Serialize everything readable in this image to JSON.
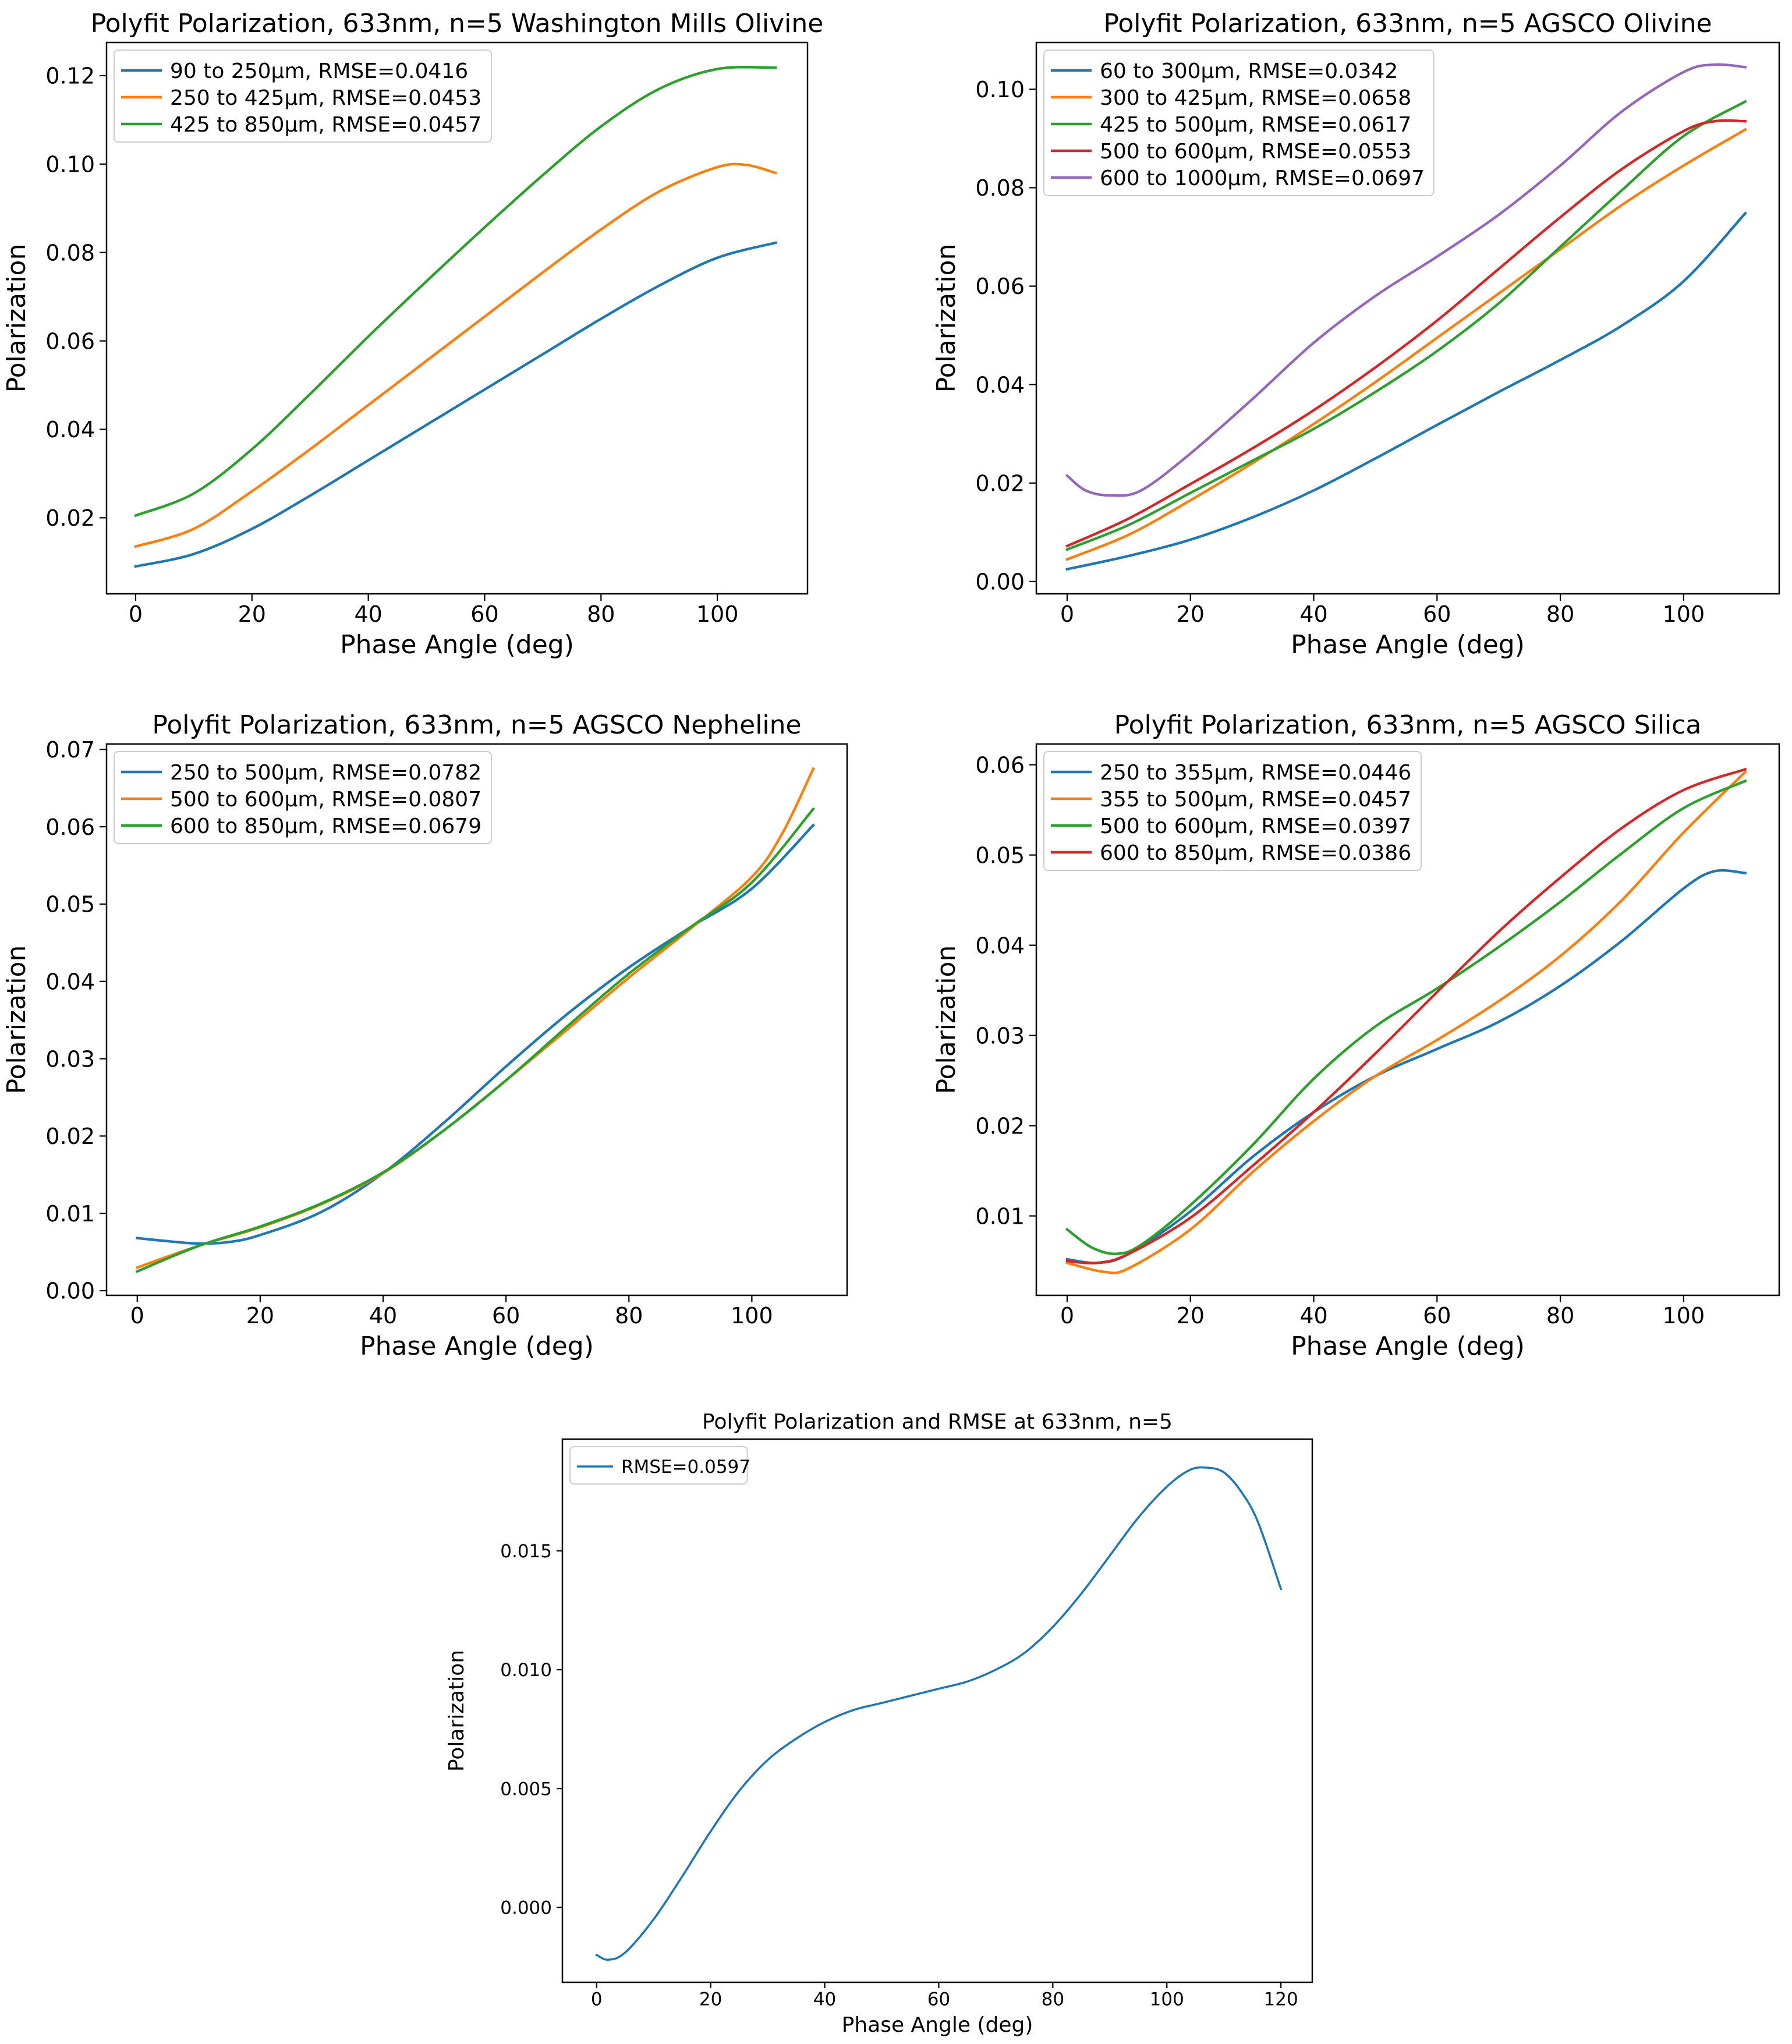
{
  "chart_data": [
    {
      "type": "line",
      "title": "Polyfit Polarization, 633nm, n=5 Washington Mills Olivine",
      "xlabel": "Phase Angle (deg)",
      "ylabel": "Polarization",
      "xlim": [
        -5,
        115.5
      ],
      "ylim": [
        0.0028,
        0.1275
      ],
      "xticks": [
        0,
        20,
        40,
        60,
        80,
        100
      ],
      "xtick_labels": [
        "0",
        "20",
        "40",
        "60",
        "80",
        "100"
      ],
      "yticks": [
        0.02,
        0.04,
        0.06,
        0.08,
        0.1,
        0.12
      ],
      "ytick_labels": [
        "0.02",
        "0.04",
        "0.06",
        "0.08",
        "0.10",
        "0.12"
      ],
      "legend": "upper-left",
      "series": [
        {
          "name": "90 to 250µm, RMSE=0.0416",
          "color": "#1f77b4",
          "x": [
            0,
            10,
            20,
            30,
            40,
            50,
            60,
            70,
            80,
            90,
            100,
            110
          ],
          "y": [
            0.009,
            0.0118,
            0.0175,
            0.025,
            0.033,
            0.041,
            0.049,
            0.057,
            0.065,
            0.0725,
            0.0788,
            0.0822
          ]
        },
        {
          "name": "250 to 425µm, RMSE=0.0453",
          "color": "#ff7f0e",
          "x": [
            0,
            10,
            20,
            30,
            40,
            50,
            60,
            70,
            80,
            90,
            100,
            105,
            110
          ],
          "y": [
            0.0135,
            0.0175,
            0.026,
            0.0355,
            0.0455,
            0.0555,
            0.0655,
            0.0755,
            0.0852,
            0.0938,
            0.0993,
            0.0998,
            0.098
          ]
        },
        {
          "name": "425 to 850µm, RMSE=0.0457",
          "color": "#2ca02c",
          "x": [
            0,
            10,
            20,
            30,
            40,
            50,
            60,
            70,
            80,
            90,
            100,
            110
          ],
          "y": [
            0.0205,
            0.0255,
            0.0355,
            0.048,
            0.061,
            0.0735,
            0.0857,
            0.0975,
            0.1085,
            0.117,
            0.1215,
            0.1218
          ]
        }
      ]
    },
    {
      "type": "line",
      "title": "Polyfit Polarization, 633nm, n=5 AGSCO Olivine",
      "xlabel": "Phase Angle (deg)",
      "ylabel": "Polarization",
      "xlim": [
        -5,
        115.5
      ],
      "ylim": [
        -0.0025,
        0.1095
      ],
      "xticks": [
        0,
        20,
        40,
        60,
        80,
        100
      ],
      "xtick_labels": [
        "0",
        "20",
        "40",
        "60",
        "80",
        "100"
      ],
      "yticks": [
        0.0,
        0.02,
        0.04,
        0.06,
        0.08,
        0.1
      ],
      "ytick_labels": [
        "0.00",
        "0.02",
        "0.04",
        "0.06",
        "0.08",
        "0.10"
      ],
      "legend": "upper-left",
      "series": [
        {
          "name": "60 to 300µm, RMSE=0.0342",
          "color": "#1f77b4",
          "x": [
            0,
            10,
            20,
            30,
            40,
            50,
            60,
            70,
            80,
            90,
            100,
            110
          ],
          "y": [
            0.0025,
            0.0052,
            0.0085,
            0.013,
            0.0185,
            0.025,
            0.0318,
            0.0385,
            0.045,
            0.052,
            0.061,
            0.0748
          ]
        },
        {
          "name": "300 to 425µm, RMSE=0.0658",
          "color": "#ff7f0e",
          "x": [
            0,
            10,
            20,
            30,
            40,
            50,
            60,
            70,
            80,
            90,
            100,
            110
          ],
          "y": [
            0.0045,
            0.0095,
            0.0165,
            0.024,
            0.032,
            0.0405,
            0.0495,
            0.0585,
            0.0675,
            0.0765,
            0.0845,
            0.0918
          ]
        },
        {
          "name": "425 to 500µm, RMSE=0.0617",
          "color": "#2ca02c",
          "x": [
            0,
            10,
            20,
            30,
            40,
            50,
            60,
            70,
            80,
            90,
            100,
            110
          ],
          "y": [
            0.0065,
            0.0115,
            0.018,
            0.0245,
            0.031,
            0.0385,
            0.0468,
            0.0565,
            0.068,
            0.0795,
            0.0905,
            0.0975
          ]
        },
        {
          "name": "500 to 600µm, RMSE=0.0553",
          "color": "#d62728",
          "x": [
            0,
            10,
            20,
            30,
            40,
            50,
            60,
            70,
            80,
            90,
            100,
            105,
            110
          ],
          "y": [
            0.0072,
            0.0128,
            0.0198,
            0.027,
            0.0348,
            0.0435,
            0.053,
            0.0635,
            0.074,
            0.0838,
            0.0915,
            0.0935,
            0.0935
          ]
        },
        {
          "name": "600 to 1000µm, RMSE=0.0697",
          "color": "#9467bd",
          "x": [
            0,
            3,
            7,
            12,
            20,
            30,
            40,
            50,
            60,
            70,
            80,
            90,
            100,
            105,
            110
          ],
          "y": [
            0.0215,
            0.0185,
            0.0175,
            0.0185,
            0.026,
            0.037,
            0.0485,
            0.058,
            0.066,
            0.0745,
            0.0845,
            0.0955,
            0.1035,
            0.105,
            0.1045
          ]
        }
      ]
    },
    {
      "type": "line",
      "title": "Polyfit Polarization, 633nm, n=5 AGSCO Nepheline",
      "xlabel": "Phase Angle (deg)",
      "ylabel": "Polarization",
      "xlim": [
        -5,
        115.5
      ],
      "ylim": [
        -0.0006,
        0.0707
      ],
      "xticks": [
        0,
        20,
        40,
        60,
        80,
        100
      ],
      "xtick_labels": [
        "0",
        "20",
        "40",
        "60",
        "80",
        "100"
      ],
      "yticks": [
        0.0,
        0.01,
        0.02,
        0.03,
        0.04,
        0.05,
        0.06,
        0.07
      ],
      "ytick_labels": [
        "0.00",
        "0.01",
        "0.02",
        "0.03",
        "0.04",
        "0.05",
        "0.06",
        "0.07"
      ],
      "legend": "upper-left",
      "series": [
        {
          "name": "250 to 500µm, RMSE=0.0782",
          "color": "#1f77b4",
          "x": [
            0,
            5,
            10,
            15,
            20,
            30,
            40,
            50,
            60,
            70,
            80,
            90,
            100,
            110
          ],
          "y": [
            0.0068,
            0.0064,
            0.0061,
            0.0063,
            0.0072,
            0.0102,
            0.0152,
            0.0218,
            0.029,
            0.0358,
            0.0418,
            0.047,
            0.052,
            0.0602
          ]
        },
        {
          "name": "500 to 600µm, RMSE=0.0807",
          "color": "#ff7f0e",
          "x": [
            0,
            10,
            20,
            30,
            40,
            50,
            60,
            70,
            80,
            90,
            100,
            105,
            110
          ],
          "y": [
            0.003,
            0.0058,
            0.0082,
            0.0112,
            0.0152,
            0.0208,
            0.0272,
            0.0338,
            0.0405,
            0.0468,
            0.0535,
            0.0592,
            0.0675
          ]
        },
        {
          "name": "600 to 850µm, RMSE=0.0679",
          "color": "#2ca02c",
          "x": [
            0,
            10,
            20,
            30,
            40,
            50,
            60,
            70,
            80,
            90,
            100,
            110
          ],
          "y": [
            0.0025,
            0.0058,
            0.0083,
            0.0113,
            0.0153,
            0.0208,
            0.0272,
            0.0342,
            0.041,
            0.047,
            0.0528,
            0.0623
          ]
        }
      ]
    },
    {
      "type": "line",
      "title": "Polyfit Polarization, 633nm, n=5 AGSCO Silica",
      "xlabel": "Phase Angle (deg)",
      "ylabel": "Polarization",
      "xlim": [
        -5,
        115.5
      ],
      "ylim": [
        0.0012,
        0.0623
      ],
      "xticks": [
        0,
        20,
        40,
        60,
        80,
        100
      ],
      "xtick_labels": [
        "0",
        "20",
        "40",
        "60",
        "80",
        "100"
      ],
      "yticks": [
        0.01,
        0.02,
        0.03,
        0.04,
        0.05,
        0.06
      ],
      "ytick_labels": [
        "0.01",
        "0.02",
        "0.03",
        "0.04",
        "0.05",
        "0.06"
      ],
      "legend": "upper-left",
      "series": [
        {
          "name": "250 to 355µm, RMSE=0.0446",
          "color": "#1f77b4",
          "x": [
            0,
            5,
            10,
            20,
            30,
            40,
            50,
            60,
            70,
            80,
            90,
            100,
            105,
            110
          ],
          "y": [
            0.0052,
            0.0048,
            0.0058,
            0.0105,
            0.0165,
            0.0215,
            0.0255,
            0.0285,
            0.0315,
            0.0355,
            0.0405,
            0.0463,
            0.0482,
            0.048
          ]
        },
        {
          "name": "355 to 500µm, RMSE=0.0457",
          "color": "#ff7f0e",
          "x": [
            0,
            6,
            10,
            20,
            30,
            40,
            50,
            60,
            70,
            80,
            90,
            100,
            110
          ],
          "y": [
            0.0048,
            0.0038,
            0.0042,
            0.0085,
            0.0148,
            0.0205,
            0.0255,
            0.0295,
            0.0338,
            0.0388,
            0.045,
            0.0525,
            0.0592
          ]
        },
        {
          "name": "500 to 600µm, RMSE=0.0397",
          "color": "#2ca02c",
          "x": [
            0,
            4,
            8,
            12,
            20,
            30,
            40,
            50,
            60,
            70,
            80,
            90,
            100,
            110
          ],
          "y": [
            0.0085,
            0.0065,
            0.0058,
            0.0068,
            0.0112,
            0.0178,
            0.0252,
            0.031,
            0.0352,
            0.0398,
            0.0448,
            0.0502,
            0.0552,
            0.0582
          ]
        },
        {
          "name": "600 to 850µm, RMSE=0.0386",
          "color": "#d62728",
          "x": [
            0,
            5,
            10,
            20,
            30,
            40,
            50,
            60,
            70,
            80,
            90,
            100,
            110
          ],
          "y": [
            0.005,
            0.0048,
            0.0058,
            0.0098,
            0.0155,
            0.0215,
            0.028,
            0.0348,
            0.0415,
            0.0475,
            0.053,
            0.0572,
            0.0595
          ]
        }
      ]
    },
    {
      "type": "line",
      "title": "Polyfit Polarization and RMSE at 633nm, n=5",
      "xlabel": "Phase Angle (deg)",
      "ylabel": "Polarization",
      "xlim": [
        -6,
        125.5
      ],
      "ylim": [
        -0.00315,
        0.0197
      ],
      "xticks": [
        0,
        20,
        40,
        60,
        80,
        100,
        120
      ],
      "xtick_labels": [
        "0",
        "20",
        "40",
        "60",
        "80",
        "100",
        "120"
      ],
      "yticks": [
        0.0,
        0.005,
        0.01,
        0.015
      ],
      "ytick_labels": [
        "0.000",
        "0.005",
        "0.010",
        "0.015"
      ],
      "legend": "upper-left",
      "series": [
        {
          "name": "RMSE=0.0597",
          "color": "#1f77b4",
          "x": [
            0,
            2,
            5,
            10,
            15,
            20,
            25,
            30,
            35,
            40,
            45,
            50,
            55,
            60,
            65,
            70,
            75,
            80,
            85,
            90,
            95,
            100,
            104,
            107,
            110,
            113,
            116,
            120
          ],
          "y": [
            -0.002,
            -0.0022,
            -0.0019,
            -0.0005,
            0.0013,
            0.0032,
            0.0049,
            0.0062,
            0.0071,
            0.0078,
            0.0083,
            0.0086,
            0.0089,
            0.0092,
            0.0095,
            0.01,
            0.0107,
            0.0118,
            0.0132,
            0.0148,
            0.0164,
            0.0177,
            0.0184,
            0.0185,
            0.0183,
            0.0175,
            0.0162,
            0.0134
          ]
        }
      ]
    }
  ]
}
